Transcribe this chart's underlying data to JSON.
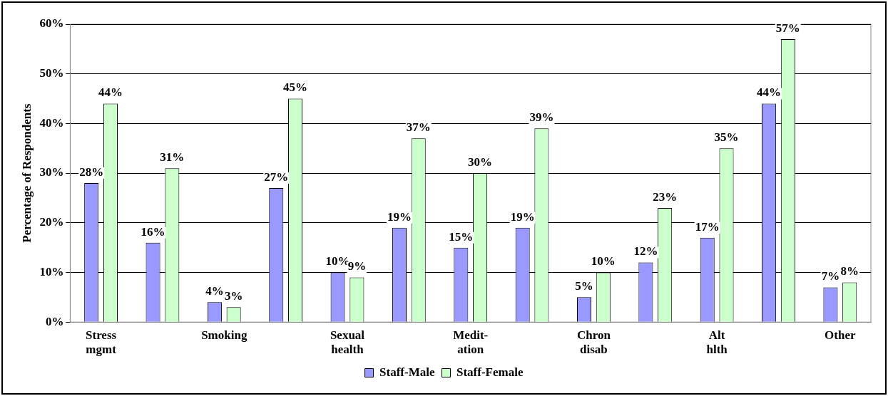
{
  "chart_data": {
    "type": "bar",
    "ylabel": "Percentage of Respondents",
    "categories": [
      "Stress mgmt",
      null,
      "Smoking",
      null,
      "Sexual health",
      null,
      "Medit-ation",
      null,
      "Chron disab",
      null,
      "Alt hlth",
      null,
      "Other"
    ],
    "series": [
      {
        "name": "Staff-Male",
        "color": "#9999ff",
        "values": [
          28,
          16,
          4,
          27,
          10,
          19,
          15,
          19,
          5,
          12,
          17,
          44,
          7
        ],
        "value_labels": [
          "28%",
          "16%",
          "4%",
          "27%",
          "10%",
          "19%",
          "15%",
          "19%",
          "5%",
          "12%",
          "17%",
          "44%",
          "7%"
        ]
      },
      {
        "name": "Staff-Female",
        "color": "#ccffcc",
        "values": [
          44,
          31,
          3,
          45,
          9,
          37,
          30,
          39,
          10,
          23,
          35,
          57,
          8
        ],
        "value_labels": [
          "44%",
          "31%",
          "3%",
          "45%",
          "9%",
          "37%",
          "30%",
          "39%",
          "10%",
          "23%",
          "35%",
          "57%",
          "8%"
        ]
      }
    ],
    "ylim": [
      0,
      60
    ],
    "yticks": [
      {
        "value": 0,
        "label": "0%"
      },
      {
        "value": 10,
        "label": "10%"
      },
      {
        "value": 20,
        "label": "20%"
      },
      {
        "value": 30,
        "label": "30%"
      },
      {
        "value": 40,
        "label": "40%"
      },
      {
        "value": 50,
        "label": "50%"
      },
      {
        "value": 60,
        "label": "60%"
      }
    ],
    "grid": "y",
    "legend": "bottom"
  }
}
